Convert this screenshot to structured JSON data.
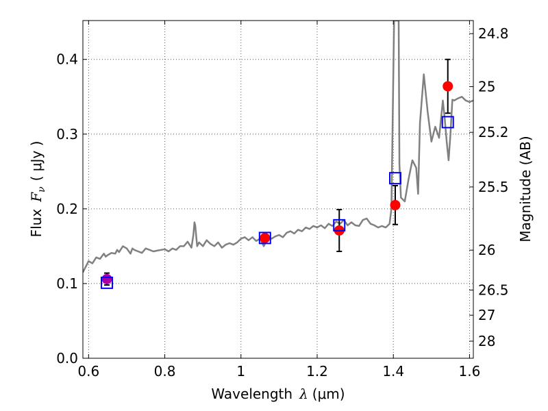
{
  "chart_data": {
    "type": "scatter",
    "xlabel_prefix": "Wavelength",
    "xlabel_symbol": "λ",
    "xlabel_unit": "(μm)",
    "ylabel_prefix": "Flux",
    "ylabel_symbol": "F",
    "ylabel_subscript": "ν",
    "ylabel_unit": "( μJy )",
    "ylabel_right": "Magnitude (AB)",
    "xlim": [
      0.585,
      1.61
    ],
    "ylim": [
      0.0,
      0.452
    ],
    "x_ticks": [
      0.6,
      0.8,
      1.0,
      1.2,
      1.4,
      1.6
    ],
    "x_tick_labels": [
      "0.6",
      "0.8",
      "1",
      "1.2",
      "1.4",
      "1.6"
    ],
    "y_ticks": [
      0.0,
      0.1,
      0.2,
      0.3,
      0.4
    ],
    "y_tick_labels": [
      "0.0",
      "0.1",
      "0.2",
      "0.3",
      "0.4"
    ],
    "right_ticks": [
      {
        "label": "24.8",
        "flux": 0.4345
      },
      {
        "label": "25",
        "flux": 0.3635
      },
      {
        "label": "25.2",
        "flux": 0.3024
      },
      {
        "label": "25.5",
        "flux": 0.2293
      },
      {
        "label": "26",
        "flux": 0.1447
      },
      {
        "label": "26.5",
        "flux": 0.0913
      },
      {
        "label": "27",
        "flux": 0.0576
      },
      {
        "label": "28",
        "flux": 0.0229
      }
    ],
    "grid": true,
    "grid_style": "dotted",
    "colors": {
      "model": "#808080",
      "observed": "#ff0000",
      "observed_first": "#aa00aa",
      "synthetic": "#0000ff",
      "errorbar": "#000000",
      "axis": "#000000",
      "grid": "#555555"
    },
    "series": [
      {
        "kind": "line",
        "x": [
          0.585,
          0.6,
          0.61,
          0.62,
          0.63,
          0.64,
          0.645,
          0.65,
          0.66,
          0.67,
          0.675,
          0.68,
          0.69,
          0.7,
          0.71,
          0.715,
          0.72,
          0.73,
          0.74,
          0.75,
          0.76,
          0.77,
          0.78,
          0.79,
          0.8,
          0.81,
          0.82,
          0.83,
          0.84,
          0.85,
          0.86,
          0.87,
          0.875,
          0.878,
          0.88,
          0.885,
          0.89,
          0.9,
          0.91,
          0.92,
          0.93,
          0.94,
          0.95,
          0.96,
          0.97,
          0.98,
          0.99,
          1.0,
          1.01,
          1.02,
          1.03,
          1.04,
          1.05,
          1.06,
          1.065,
          1.07,
          1.08,
          1.09,
          1.1,
          1.11,
          1.12,
          1.13,
          1.14,
          1.15,
          1.16,
          1.17,
          1.18,
          1.19,
          1.2,
          1.21,
          1.22,
          1.23,
          1.24,
          1.25,
          1.26,
          1.27,
          1.28,
          1.29,
          1.3,
          1.31,
          1.32,
          1.33,
          1.34,
          1.35,
          1.36,
          1.37,
          1.38,
          1.39,
          1.395,
          1.4,
          1.402,
          1.404,
          1.406,
          1.408,
          1.41,
          1.412,
          1.414,
          1.416,
          1.42,
          1.43,
          1.44,
          1.45,
          1.46,
          1.465,
          1.47,
          1.48,
          1.49,
          1.5,
          1.51,
          1.52,
          1.53,
          1.535,
          1.54,
          1.545,
          1.55,
          1.555,
          1.56,
          1.57,
          1.58,
          1.59,
          1.6,
          1.61
        ],
        "y": [
          0.115,
          0.13,
          0.127,
          0.135,
          0.133,
          0.14,
          0.136,
          0.138,
          0.141,
          0.14,
          0.145,
          0.142,
          0.15,
          0.147,
          0.14,
          0.147,
          0.145,
          0.143,
          0.141,
          0.147,
          0.145,
          0.143,
          0.144,
          0.145,
          0.146,
          0.143,
          0.147,
          0.145,
          0.15,
          0.15,
          0.156,
          0.148,
          0.165,
          0.182,
          0.178,
          0.15,
          0.155,
          0.15,
          0.158,
          0.153,
          0.15,
          0.155,
          0.148,
          0.152,
          0.154,
          0.152,
          0.155,
          0.16,
          0.162,
          0.158,
          0.162,
          0.157,
          0.16,
          0.15,
          0.155,
          0.162,
          0.16,
          0.163,
          0.165,
          0.162,
          0.168,
          0.17,
          0.167,
          0.172,
          0.17,
          0.175,
          0.173,
          0.177,
          0.175,
          0.178,
          0.174,
          0.18,
          0.177,
          0.183,
          0.18,
          0.185,
          0.178,
          0.182,
          0.178,
          0.177,
          0.185,
          0.187,
          0.18,
          0.178,
          0.175,
          0.177,
          0.175,
          0.18,
          0.2,
          0.38,
          0.452,
          0.452,
          0.452,
          0.452,
          0.452,
          0.452,
          0.452,
          0.26,
          0.215,
          0.21,
          0.24,
          0.265,
          0.255,
          0.22,
          0.315,
          0.38,
          0.33,
          0.29,
          0.31,
          0.295,
          0.345,
          0.32,
          0.29,
          0.265,
          0.3,
          0.346,
          0.345,
          0.348,
          0.35,
          0.345,
          0.343,
          0.345
        ]
      },
      {
        "kind": "points",
        "x": [
          0.648,
          1.063,
          1.258,
          1.405,
          1.543
        ],
        "y": [
          0.106,
          0.161,
          0.171,
          0.205,
          0.364
        ],
        "yerr": [
          0.008,
          0.0,
          0.028,
          0.026,
          0.036
        ]
      },
      {
        "kind": "squares",
        "x": [
          0.648,
          1.063,
          1.258,
          1.405,
          1.543
        ],
        "y": [
          0.101,
          0.161,
          0.178,
          0.241,
          0.316
        ]
      }
    ]
  }
}
